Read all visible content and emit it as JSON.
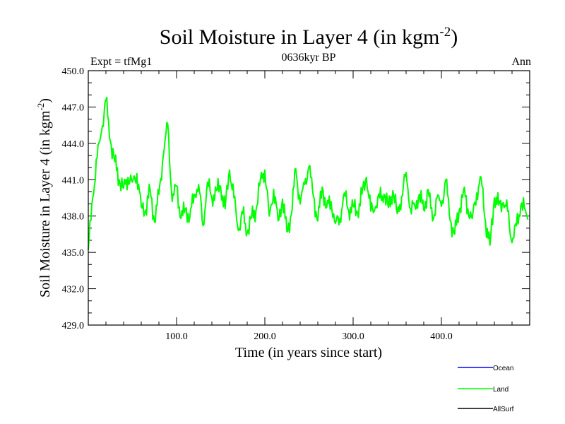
{
  "chart_data": {
    "type": "line",
    "title": "Soil Moisture in Layer 4 (in kgm",
    "title_sup": "-2",
    "title_close": ")",
    "subtitle_left": "Expt = tfMg1",
    "subtitle_center": "0636kyr BP",
    "subtitle_right": "Ann",
    "xlabel": "Time (in years since start)",
    "ylabel": "Soil Moisture in Layer 4 (in kgm",
    "ylabel_sup": "-2",
    "ylabel_close": ")",
    "xlim": [
      0,
      500
    ],
    "ylim": [
      429,
      450
    ],
    "x_tick_labels": [
      "100.0",
      "200.0",
      "300.0",
      "400.0"
    ],
    "y_tick_labels": [
      "429.0",
      "432.0",
      "435.0",
      "438.0",
      "441.0",
      "444.0",
      "447.0",
      "450.0"
    ],
    "legend": [
      {
        "name": "Ocean",
        "color": "#0000ff"
      },
      {
        "name": "Land",
        "color": "#00ff00"
      },
      {
        "name": "AllSurf",
        "color": "#000000"
      }
    ],
    "series": [
      {
        "name": "Land",
        "color": "#00ff00",
        "x_start": 0,
        "x_step": 5,
        "values": [
          435.2,
          439.5,
          442.8,
          445.0,
          447.6,
          444.2,
          442.5,
          441.0,
          440.3,
          441.2,
          440.8,
          441.5,
          438.8,
          438.5,
          440.2,
          437.5,
          439.8,
          443.0,
          445.6,
          439.2,
          440.5,
          437.8,
          438.6,
          437.9,
          439.8,
          440.6,
          437.2,
          440.8,
          439.5,
          440.1,
          440.4,
          438.6,
          441.8,
          439.5,
          436.8,
          438.2,
          436.6,
          437.9,
          438.5,
          441.0,
          441.8,
          438.0,
          440.2,
          437.6,
          439.4,
          436.7,
          438.1,
          441.9,
          439.0,
          440.6,
          442.1,
          439.6,
          437.6,
          440.4,
          438.7,
          439.2,
          437.4,
          437.8,
          439.9,
          438.5,
          438.8,
          438.3,
          439.8,
          441.2,
          438.4,
          438.7,
          439.5,
          439.8,
          438.7,
          440.1,
          438.2,
          439.6,
          441.6,
          438.6,
          438.8,
          439.8,
          438.5,
          440.2,
          437.6,
          439.5,
          438.8,
          441.0,
          437.6,
          436.5,
          438.4,
          440.1,
          438.6,
          437.8,
          439.9,
          441.2,
          437.5,
          435.6,
          439.5,
          438.9,
          439.1,
          438.4,
          435.8,
          437.2,
          438.9,
          438.5
        ]
      }
    ]
  }
}
